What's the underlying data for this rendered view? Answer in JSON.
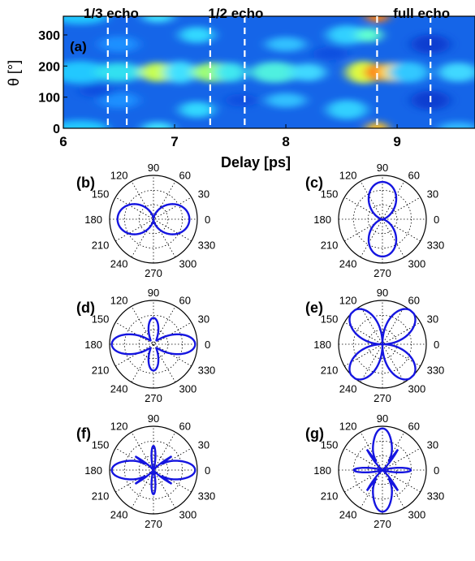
{
  "chart_data": [
    {
      "type": "heatmap",
      "panel_label": "(a)",
      "xlabel": "Delay [ps]",
      "ylabel": "θ [°]",
      "xlim": [
        6,
        9.7
      ],
      "ylim": [
        0,
        360
      ],
      "xticks": [
        6,
        7,
        8,
        9
      ],
      "yticks": [
        0,
        100,
        200,
        300
      ],
      "colormap": "jet",
      "dashed_lines_x": [
        6.4,
        6.57,
        7.32,
        7.63,
        8.82,
        9.3
      ],
      "line_color": "#ffffff",
      "annotations": [
        "1/3 echo",
        "1/2 echo",
        "full echo"
      ],
      "annotation_x": [
        6.43,
        7.55,
        9.22
      ]
    },
    {
      "type": "polar",
      "panel_label": "(b)",
      "angle_ticks": [
        "0",
        "30",
        "60",
        "90",
        "120",
        "150",
        "180",
        "210",
        "240",
        "270",
        "300",
        "330"
      ],
      "shape": "two-lobe",
      "lobe_axis_deg": 0,
      "color": "#1515e0"
    },
    {
      "type": "polar",
      "panel_label": "(c)",
      "angle_ticks": [
        "0",
        "30",
        "60",
        "90",
        "120",
        "150",
        "180",
        "210",
        "240",
        "270",
        "300",
        "330"
      ],
      "shape": "two-lobe",
      "lobe_axis_deg": 90,
      "color": "#1515e0"
    },
    {
      "type": "polar",
      "panel_label": "(d)",
      "angle_ticks": [
        "0",
        "30",
        "60",
        "90",
        "120",
        "150",
        "180",
        "210",
        "240",
        "270",
        "300",
        "330"
      ],
      "shape": "four-lobe",
      "lobes_major_deg": [
        0,
        180
      ],
      "lobes_minor_deg": [
        90,
        270
      ],
      "color": "#1515e0"
    },
    {
      "type": "polar",
      "panel_label": "(e)",
      "angle_ticks": [
        "0",
        "30",
        "60",
        "90",
        "120",
        "150",
        "180",
        "210",
        "240",
        "270",
        "300",
        "330"
      ],
      "shape": "four-lobe-x",
      "lobe_angles_deg": [
        60,
        120,
        240,
        300
      ],
      "color": "#1515e0"
    },
    {
      "type": "polar",
      "panel_label": "(f)",
      "angle_ticks": [
        "0",
        "30",
        "60",
        "90",
        "120",
        "150",
        "180",
        "210",
        "240",
        "270",
        "300",
        "330"
      ],
      "shape": "six-lobe",
      "lobes_major_deg": [
        0,
        180
      ],
      "lobes_minor_deg": [
        60,
        120,
        240,
        300
      ],
      "color": "#1515e0"
    },
    {
      "type": "polar",
      "panel_label": "(g)",
      "angle_ticks": [
        "0",
        "30",
        "60",
        "90",
        "120",
        "150",
        "180",
        "210",
        "240",
        "270",
        "300",
        "330"
      ],
      "shape": "six-lobe",
      "lobes_major_deg": [
        90,
        270
      ],
      "lobes_minor_deg": [
        30,
        150,
        210,
        330
      ],
      "color": "#1515e0"
    }
  ]
}
